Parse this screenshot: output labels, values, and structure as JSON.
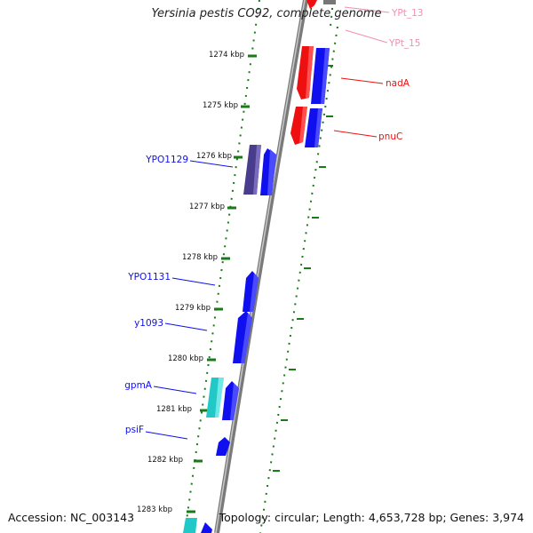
{
  "title": "Yersinia pestis CO92, complete genome",
  "footer": {
    "accession": "Accession: NC_003143",
    "topology": "Topology: circular; Length: 4,653,728 bp; Genes: 3,974"
  },
  "colors": {
    "blue_gene": "#1010ee",
    "red_gene": "#ee1010",
    "cyan_gene": "#20c8c8",
    "purple_gene": "#4a3c8c",
    "tick": "#1a7a1a",
    "backbone": "#888888"
  },
  "ruler": {
    "ticks": [
      "1274 kbp",
      "1275 kbp",
      "1276 kbp",
      "1277 kbp",
      "1278 kbp",
      "1279 kbp",
      "1280 kbp",
      "1281 kbp",
      "1282 kbp",
      "1283 kbp"
    ]
  },
  "gene_labels": {
    "left": [
      "YPO1129",
      "YPO1131",
      "y1093",
      "gpmA",
      "psiF"
    ],
    "right_red": [
      "nadA",
      "pnuC"
    ],
    "right_pink": [
      "YPt_13",
      "YPt_15"
    ]
  }
}
